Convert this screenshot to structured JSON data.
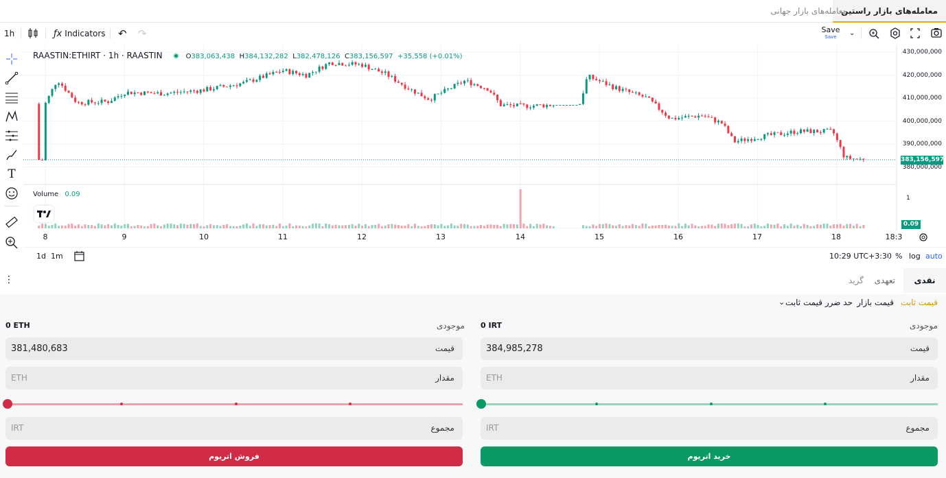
{
  "tabs": {
    "active": "معامله‌های بازار راستین",
    "global": "معامله‌های بازار جهانی"
  },
  "toolbar": {
    "interval": "1h",
    "indicators": "Indicators",
    "save": "Save",
    "save_sub": "Save"
  },
  "chart": {
    "symbol": "RAASTIN:ETHIRT · 1h · RAASTIN",
    "open_k": "O",
    "open": "383,063,438",
    "high_k": "H",
    "high": "384,132,282",
    "low_k": "L",
    "low": "382,478,126",
    "close_k": "C",
    "close": "383,156,597",
    "change": "+35,558 (+0.01%)",
    "volume_label": "Volume",
    "volume_value": "0.09",
    "last_price_tag": "383,156,597",
    "volume_tag": "0.09",
    "volume_axis_one": "1",
    "y_ticks": [
      "430,000,000",
      "420,000,000",
      "410,000,000",
      "400,000,000",
      "390,000,000",
      "380,000,000"
    ],
    "x_ticks": [
      "8",
      "9",
      "10",
      "11",
      "12",
      "13",
      "14",
      "15",
      "16",
      "17",
      "18",
      "18:3"
    ],
    "up_color": "#089981",
    "down_color": "#f23645"
  },
  "chart_data": {
    "type": "candlestick",
    "title": "RAASTIN:ETHIRT · 1h · RAASTIN",
    "xlabel": "",
    "ylabel": "",
    "x_ticks": [
      "8",
      "9",
      "10",
      "11",
      "12",
      "13",
      "14",
      "15",
      "16",
      "17",
      "18",
      "18:3"
    ],
    "ylim": [
      376000000,
      432000000
    ],
    "grid": true,
    "anchors_close": [
      {
        "x": 8.0,
        "y": 407500000
      },
      {
        "x": 8.15,
        "y": 418000000
      },
      {
        "x": 8.4,
        "y": 408000000
      },
      {
        "x": 8.8,
        "y": 408500000
      },
      {
        "x": 9.0,
        "y": 412500000
      },
      {
        "x": 9.5,
        "y": 412000000
      },
      {
        "x": 10.0,
        "y": 413500000
      },
      {
        "x": 10.5,
        "y": 416500000
      },
      {
        "x": 11.0,
        "y": 422000000
      },
      {
        "x": 11.3,
        "y": 420000000
      },
      {
        "x": 11.6,
        "y": 425500000
      },
      {
        "x": 12.0,
        "y": 424500000
      },
      {
        "x": 12.3,
        "y": 420500000
      },
      {
        "x": 12.6,
        "y": 414000000
      },
      {
        "x": 12.85,
        "y": 409500000
      },
      {
        "x": 13.3,
        "y": 417500000
      },
      {
        "x": 13.6,
        "y": 414000000
      },
      {
        "x": 13.75,
        "y": 407000000
      },
      {
        "x": 14.0,
        "y": 406500000
      },
      {
        "x": 14.4,
        "y": 407000000
      },
      {
        "x": 14.75,
        "y": 407000000
      },
      {
        "x": 14.85,
        "y": 419500000
      },
      {
        "x": 15.2,
        "y": 414500000
      },
      {
        "x": 15.6,
        "y": 410000000
      },
      {
        "x": 15.9,
        "y": 401000000
      },
      {
        "x": 16.3,
        "y": 402500000
      },
      {
        "x": 16.55,
        "y": 399000000
      },
      {
        "x": 16.7,
        "y": 391000000
      },
      {
        "x": 17.0,
        "y": 393000000
      },
      {
        "x": 17.5,
        "y": 395500000
      },
      {
        "x": 17.95,
        "y": 395500000
      },
      {
        "x": 18.1,
        "y": 384000000
      },
      {
        "x": 18.35,
        "y": 383156597
      }
    ],
    "volume_spike": {
      "x": 14.0,
      "value": 1
    },
    "last_volume": 0.09
  },
  "chart_footer": {
    "range1": "1d",
    "range2": "1m",
    "time": "10:29 UTC+3:30",
    "percent": "%",
    "log": "log",
    "auto": "auto"
  },
  "order_tabs": {
    "cash": "نقدی",
    "margin": "تعهدی",
    "grid": "گرید"
  },
  "order_types": {
    "limit": "قیمت ثابت",
    "market": "قیمت بازار",
    "stop": "حد ضرر قیمت ثابت"
  },
  "buy": {
    "balance_label": "موجودی",
    "balance": "0 IRT",
    "price_label": "قیمت",
    "price": "384,985,278",
    "amount_label": "مقدار",
    "amount_placeholder": "ETH",
    "total_label": "مجموع",
    "total_placeholder": "IRT",
    "button": "خرید اتریوم",
    "color": "#0b9a63"
  },
  "sell": {
    "balance_label": "موجودی",
    "balance": "0 ETH",
    "price_label": "قیمت",
    "price": "381,480,683",
    "amount_label": "مقدار",
    "amount_placeholder": "ETH",
    "total_label": "مجموع",
    "total_placeholder": "IRT",
    "button": "فروش اتریوم",
    "color": "#d02b47"
  },
  "icons": [
    "crosshair-icon",
    "trend-line-icon",
    "fib-icon",
    "pattern-icon",
    "measure-lines-icon",
    "brush-icon",
    "text-icon",
    "emoji-icon",
    "ruler-icon",
    "zoom-icon",
    "undo-icon",
    "redo-icon",
    "candle-type-icon",
    "fx-icon",
    "zoom-search-icon",
    "settings-icon",
    "fullscreen-icon",
    "camera-icon",
    "calendar-goto-icon",
    "chart-settings-icon",
    "more-vert-icon",
    "chevron-down-icon",
    "tradingview-logo-icon"
  ]
}
